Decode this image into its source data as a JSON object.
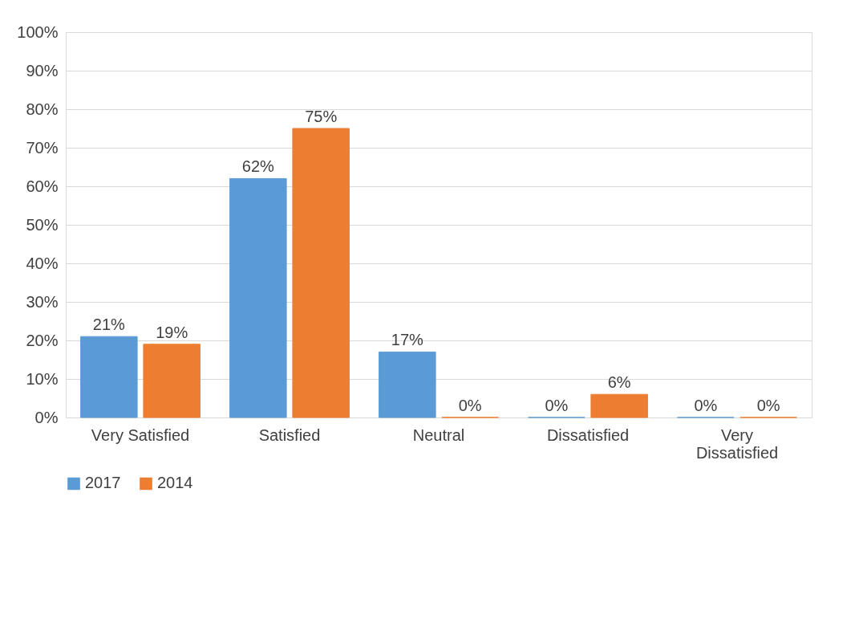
{
  "chart_data": {
    "type": "bar",
    "categories": [
      "Very Satisfied",
      "Satisfied",
      "Neutral",
      "Dissatisfied",
      "Very Dissatisfied"
    ],
    "series": [
      {
        "name": "2017",
        "color": "#5b9bd5",
        "values": [
          21,
          62,
          17,
          0,
          0
        ],
        "value_labels": [
          "21%",
          "62%",
          "17%",
          "0%",
          "0%"
        ]
      },
      {
        "name": "2014",
        "color": "#ed7d31",
        "values": [
          19,
          75,
          0,
          6,
          0
        ],
        "value_labels": [
          "19%",
          "75%",
          "0%",
          "6%",
          "0%"
        ]
      }
    ],
    "ylim": [
      0,
      100
    ],
    "yticks": [
      {
        "value": 0,
        "label": "0%"
      },
      {
        "value": 10,
        "label": "10%"
      },
      {
        "value": 20,
        "label": "20%"
      },
      {
        "value": 30,
        "label": "30%"
      },
      {
        "value": 40,
        "label": "40%"
      },
      {
        "value": 50,
        "label": "50%"
      },
      {
        "value": 60,
        "label": "60%"
      },
      {
        "value": 70,
        "label": "70%"
      },
      {
        "value": 80,
        "label": "80%"
      },
      {
        "value": 90,
        "label": "90%"
      },
      {
        "value": 100,
        "label": "100%"
      }
    ],
    "grid": "y",
    "legend": "bottom"
  }
}
